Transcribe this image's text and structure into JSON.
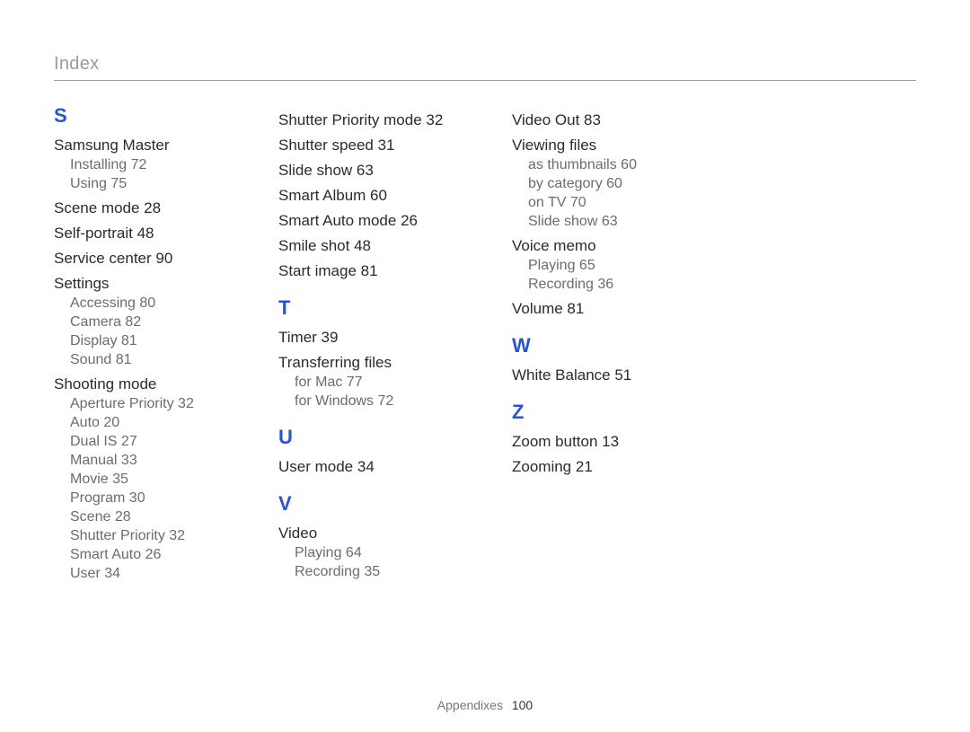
{
  "header": "Index",
  "footer_label": "Appendixes",
  "footer_page": "100",
  "colors": {
    "letter": "#2454d8",
    "header": "#9a9a9a",
    "text": "#2b2b2b",
    "subtext": "#6c6c6c",
    "background": "#ffffff"
  },
  "col1": {
    "groups": [
      {
        "letter": "S",
        "entries": [
          {
            "label": "Samsung Master",
            "sub": [
              {
                "label": "Installing",
                "page": "72"
              },
              {
                "label": "Using",
                "page": "75"
              }
            ]
          },
          {
            "label": "Scene mode",
            "page": "28"
          },
          {
            "label": "Self-portrait",
            "page": "48"
          },
          {
            "label": "Service center",
            "page": "90"
          },
          {
            "label": "Settings",
            "sub": [
              {
                "label": "Accessing",
                "page": "80"
              },
              {
                "label": "Camera",
                "page": "82"
              },
              {
                "label": "Display",
                "page": "81"
              },
              {
                "label": "Sound",
                "page": "81"
              }
            ]
          },
          {
            "label": "Shooting mode",
            "sub": [
              {
                "label": "Aperture Priority",
                "page": "32"
              },
              {
                "label": "Auto",
                "page": "20"
              },
              {
                "label": "Dual IS",
                "page": "27"
              },
              {
                "label": "Manual",
                "page": "33"
              },
              {
                "label": "Movie",
                "page": "35"
              },
              {
                "label": "Program",
                "page": "30"
              },
              {
                "label": "Scene",
                "page": "28"
              },
              {
                "label": "Shutter Priority",
                "page": "32"
              },
              {
                "label": "Smart Auto",
                "page": "26"
              },
              {
                "label": "User",
                "page": "34"
              }
            ]
          }
        ]
      }
    ]
  },
  "col2": {
    "lead_entries": [
      {
        "label": "Shutter Priority mode",
        "page": "32"
      },
      {
        "label": "Shutter speed",
        "page": "31"
      },
      {
        "label": "Slide show",
        "page": "63"
      },
      {
        "label": "Smart Album",
        "page": "60"
      },
      {
        "label": "Smart Auto mode",
        "page": "26"
      },
      {
        "label": "Smile shot",
        "page": "48"
      },
      {
        "label": "Start image",
        "page": "81"
      }
    ],
    "groups": [
      {
        "letter": "T",
        "entries": [
          {
            "label": "Timer",
            "page": "39"
          },
          {
            "label": "Transferring files",
            "sub": [
              {
                "label": "for Mac",
                "page": "77"
              },
              {
                "label": "for Windows",
                "page": "72"
              }
            ]
          }
        ]
      },
      {
        "letter": "U",
        "entries": [
          {
            "label": "User mode",
            "page": "34"
          }
        ]
      },
      {
        "letter": "V",
        "entries": [
          {
            "label": "Video",
            "sub": [
              {
                "label": "Playing",
                "page": "64"
              },
              {
                "label": "Recording",
                "page": "35"
              }
            ]
          }
        ]
      }
    ]
  },
  "col3": {
    "lead_entries": [
      {
        "label": "Video Out",
        "page": "83"
      },
      {
        "label": "Viewing files",
        "sub": [
          {
            "label": "as thumbnails",
            "page": "60"
          },
          {
            "label": "by category",
            "page": "60"
          },
          {
            "label": "on TV",
            "page": "70"
          },
          {
            "label": "Slide show",
            "page": "63"
          }
        ]
      },
      {
        "label": "Voice memo",
        "sub": [
          {
            "label": "Playing",
            "page": "65"
          },
          {
            "label": "Recording",
            "page": "36"
          }
        ]
      },
      {
        "label": "Volume",
        "page": "81"
      }
    ],
    "groups": [
      {
        "letter": "W",
        "entries": [
          {
            "label": "White Balance",
            "page": "51"
          }
        ]
      },
      {
        "letter": "Z",
        "entries": [
          {
            "label": "Zoom button",
            "page": "13"
          },
          {
            "label": "Zooming",
            "page": "21"
          }
        ]
      }
    ]
  }
}
